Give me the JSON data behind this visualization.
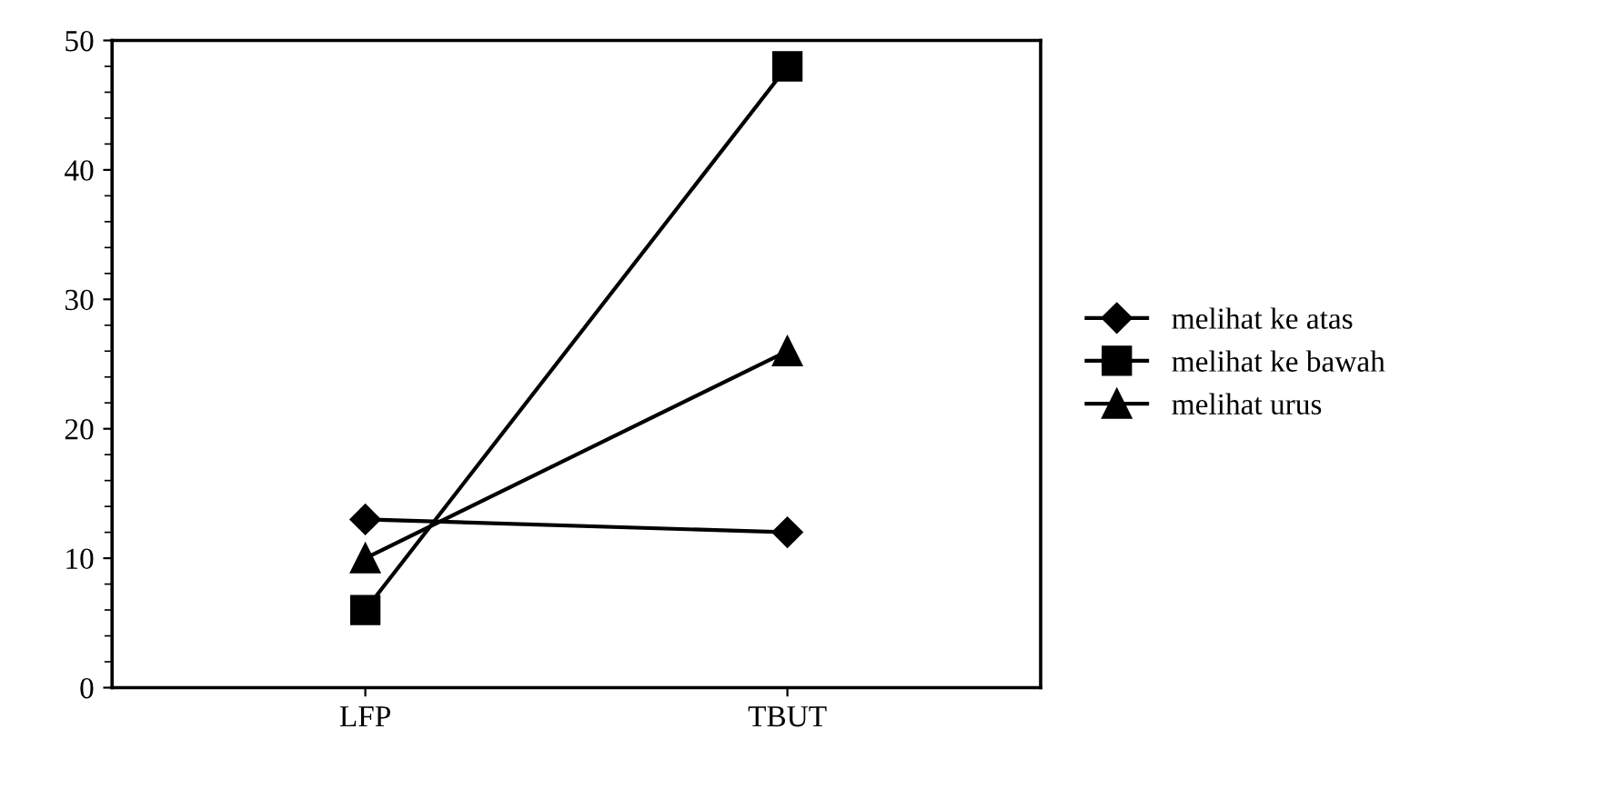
{
  "chart_data": {
    "type": "line",
    "categories": [
      "LFP",
      "TBUT"
    ],
    "series": [
      {
        "name": "melihat ke atas",
        "color": "#000000",
        "marker": "diamond",
        "values": [
          13,
          12
        ]
      },
      {
        "name": "melihat ke bawah",
        "color": "#000000",
        "marker": "square",
        "values": [
          6,
          48
        ]
      },
      {
        "name": "melihat urus",
        "color": "#000000",
        "marker": "triangle",
        "values": [
          10,
          26
        ]
      }
    ],
    "ylim": [
      0,
      50
    ],
    "yticks": [
      0,
      10,
      20,
      30,
      40,
      50
    ],
    "grid": false,
    "legend": "right",
    "line_style": "solid"
  }
}
